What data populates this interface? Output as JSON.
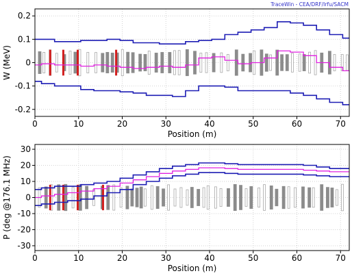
{
  "watermark": "TraceWin - CEA/DRF/Irfu/SACM",
  "colors": {
    "envelope": "#1c1cb4",
    "center": "#e020e0",
    "element_dark": "#8c8c8c",
    "element_light": "#a8a8a8",
    "cavity_marker": "#d21e1e"
  },
  "chart_data": [
    {
      "type": "line",
      "title": "",
      "xlabel": "Position (m)",
      "ylabel": "W (MeV)",
      "xlim": [
        0,
        72
      ],
      "ylim": [
        -0.23,
        0.23
      ],
      "xticks": [
        "0",
        "10",
        "20",
        "30",
        "40",
        "50",
        "60",
        "70"
      ],
      "yticks": [
        "-0.2",
        "-0.1",
        "0",
        "0.1",
        "0.2"
      ],
      "grid": true,
      "series": [
        {
          "role": "upper-envelope",
          "x": [
            0,
            3,
            6,
            9,
            12,
            15,
            18,
            21,
            24,
            27,
            30,
            33,
            36,
            39,
            42,
            45,
            48,
            51,
            54,
            57,
            60,
            63,
            66,
            69,
            72
          ],
          "y": [
            0.1,
            0.1,
            0.09,
            0.09,
            0.095,
            0.095,
            0.1,
            0.095,
            0.085,
            0.085,
            0.08,
            0.08,
            0.09,
            0.095,
            0.1,
            0.12,
            0.13,
            0.14,
            0.15,
            0.175,
            0.17,
            0.16,
            0.14,
            0.12,
            0.105
          ]
        },
        {
          "role": "center",
          "x": [
            0,
            3,
            6,
            9,
            12,
            15,
            18,
            21,
            24,
            27,
            30,
            33,
            36,
            39,
            42,
            45,
            48,
            51,
            54,
            57,
            60,
            63,
            66,
            69,
            72
          ],
          "y": [
            -0.01,
            -0.005,
            -0.01,
            -0.01,
            -0.015,
            -0.01,
            -0.015,
            -0.02,
            -0.025,
            -0.02,
            -0.015,
            -0.02,
            -0.01,
            0.02,
            0.025,
            0.01,
            -0.005,
            0.0,
            0.02,
            0.05,
            0.045,
            0.03,
            0.0,
            -0.02,
            -0.035
          ]
        },
        {
          "role": "lower-envelope",
          "x": [
            0,
            3,
            6,
            9,
            12,
            15,
            18,
            21,
            24,
            27,
            30,
            33,
            36,
            39,
            42,
            45,
            48,
            51,
            54,
            57,
            60,
            63,
            66,
            69,
            72
          ],
          "y": [
            -0.08,
            -0.09,
            -0.1,
            -0.1,
            -0.115,
            -0.12,
            -0.12,
            -0.125,
            -0.13,
            -0.14,
            -0.14,
            -0.145,
            -0.12,
            -0.1,
            -0.1,
            -0.105,
            -0.12,
            -0.12,
            -0.12,
            -0.12,
            -0.13,
            -0.14,
            -0.155,
            -0.17,
            -0.18
          ]
        }
      ],
      "cavity_markers_x": [
        3.5,
        6.5,
        9.8,
        18.6
      ]
    },
    {
      "type": "line",
      "title": "",
      "xlabel": "Position (m)",
      "ylabel": "P (deg @176.1 MHz)",
      "xlim": [
        0,
        72
      ],
      "ylim": [
        -33,
        33
      ],
      "xticks": [
        "0",
        "10",
        "20",
        "30",
        "40",
        "50",
        "60",
        "70"
      ],
      "yticks": [
        "-30",
        "-20",
        "-10",
        "0",
        "10",
        "20",
        "30"
      ],
      "grid": true,
      "series": [
        {
          "role": "upper-envelope",
          "x": [
            0,
            3,
            6,
            9,
            12,
            15,
            18,
            21,
            24,
            27,
            30,
            33,
            36,
            39,
            42,
            45,
            48,
            51,
            54,
            57,
            60,
            63,
            66,
            69,
            72
          ],
          "y": [
            5,
            6,
            7,
            7,
            8,
            9,
            10,
            12,
            14,
            16,
            18,
            19.5,
            20.5,
            21.5,
            21.5,
            21,
            20.5,
            20.5,
            20.5,
            20.5,
            20.5,
            20,
            19,
            18,
            18
          ]
        },
        {
          "role": "center",
          "x": [
            0,
            3,
            6,
            9,
            12,
            15,
            18,
            21,
            24,
            27,
            30,
            33,
            36,
            39,
            42,
            45,
            48,
            51,
            54,
            57,
            60,
            63,
            66,
            69,
            72
          ],
          "y": [
            0,
            1,
            2,
            3,
            4,
            5.5,
            7,
            9,
            11,
            13,
            15,
            16.5,
            17.5,
            18.5,
            18.5,
            18,
            17.5,
            17.5,
            17.5,
            17.5,
            17.5,
            17,
            16.5,
            16,
            16
          ]
        },
        {
          "role": "lower-envelope",
          "x": [
            0,
            3,
            6,
            9,
            12,
            15,
            18,
            21,
            24,
            27,
            30,
            33,
            36,
            39,
            42,
            45,
            48,
            51,
            54,
            57,
            60,
            63,
            66,
            69,
            72
          ],
          "y": [
            -5,
            -4,
            -3,
            -2,
            -1,
            1,
            3,
            5,
            8,
            10,
            12,
            13.5,
            14.5,
            15.5,
            15.5,
            15,
            14.5,
            14.5,
            14.5,
            14.5,
            14.5,
            14,
            13.5,
            13,
            13
          ]
        }
      ],
      "cavity_markers_x": [
        3.5,
        6.5,
        9.8,
        15.6
      ]
    }
  ]
}
